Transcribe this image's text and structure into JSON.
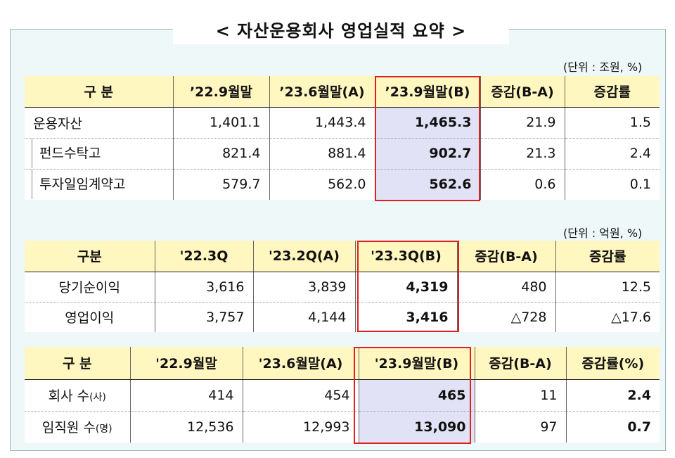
{
  "title": "< 자산운용회사 영업실적 요약 >",
  "table1": {
    "unit": "(단위 : 조원, %)",
    "headers": [
      "구 분",
      "’22.9월말",
      "’23.6월말(A)",
      "’23.9월말(B)",
      "증감(B-A)",
      "증감률"
    ],
    "rows": [
      {
        "label": "운용자산",
        "v1": "1,401.1",
        "v2": "1,443.4",
        "v3": "1,465.3",
        "v4": "21.9",
        "v5": "1.5"
      },
      {
        "label": "펀드수탁고",
        "v1": "821.4",
        "v2": "881.4",
        "v3": "902.7",
        "v4": "21.3",
        "v5": "2.4"
      },
      {
        "label": "투자일임계약고",
        "v1": "579.7",
        "v2": "562.0",
        "v3": "562.6",
        "v4": "0.6",
        "v5": "0.1"
      }
    ]
  },
  "table2": {
    "unit": "(단위 : 억원, %)",
    "headers": [
      "구분",
      "'22.3Q",
      "'23.2Q(A)",
      "'23.3Q(B)",
      "증감(B-A)",
      "증감률"
    ],
    "rows": [
      {
        "label": "당기순이익",
        "v1": "3,616",
        "v2": "3,839",
        "v3": "4,319",
        "v4": "480",
        "v5": "12.5"
      },
      {
        "label": "영업이익",
        "v1": "3,757",
        "v2": "4,144",
        "v3": "3,416",
        "v4": "△728",
        "v5": "△17.6"
      }
    ]
  },
  "table3": {
    "headers": [
      "구 분",
      "'22.9월말",
      "'23.6월말(A)",
      "'23.9월말(B)",
      "증감(B-A)",
      "증감률(%)"
    ],
    "rows": [
      {
        "label": "회사 수",
        "suffix": "(사)",
        "v1": "414",
        "v2": "454",
        "v3": "465",
        "v4": "11",
        "v5": "2.4"
      },
      {
        "label": "임직원 수",
        "suffix": "(명)",
        "v1": "12,536",
        "v2": "12,993",
        "v3": "13,090",
        "v4": "97",
        "v5": "0.7"
      }
    ]
  }
}
